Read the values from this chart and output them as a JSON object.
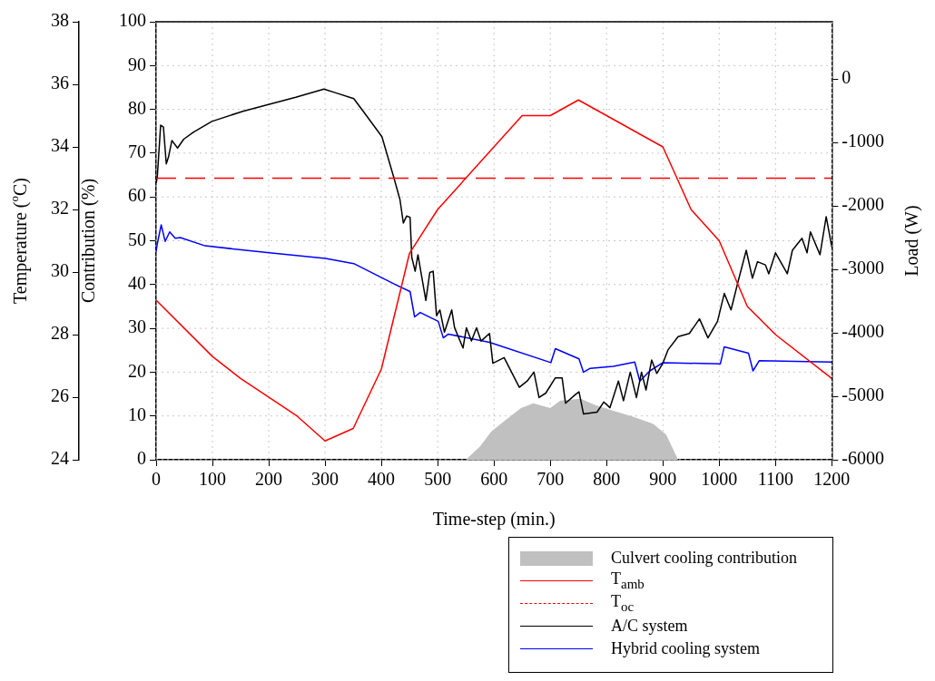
{
  "chart_data": {
    "type": "line",
    "xlabel": "Time-step (min.)",
    "ylabel": "Contribution (%)",
    "y2label": "Load (W)",
    "y3label": "Temperature ($^{o}$C)",
    "xlim": [
      0,
      1200
    ],
    "xticks": [
      0,
      100,
      200,
      300,
      400,
      500,
      600,
      700,
      800,
      900,
      1000,
      1100,
      1200
    ],
    "ylim": [
      0,
      100
    ],
    "yticks": [
      0,
      10,
      20,
      30,
      40,
      50,
      60,
      70,
      80,
      90,
      100
    ],
    "y2lim": [
      -6000,
      900
    ],
    "y2ticks": [
      -6000,
      -5000,
      -4000,
      -3000,
      -2000,
      -1000,
      0
    ],
    "y3lim": [
      24,
      38
    ],
    "y3ticks": [
      24,
      26,
      28,
      30,
      32,
      34,
      36,
      38
    ],
    "grid": true,
    "legend": "bottom right",
    "series": [
      {
        "name": "Culvert cooling contribution",
        "type": "area",
        "color": "#c0c0c0",
        "x": [
          550,
          575,
          595,
          620,
          648,
          670,
          700,
          718,
          754,
          780,
          812,
          848,
          883,
          906,
          927
        ],
        "values": [
          0,
          3,
          6.4,
          9,
          11.8,
          12.9,
          11.8,
          13.5,
          13.9,
          12.5,
          11.2,
          9.8,
          8.2,
          5.7,
          0
        ]
      },
      {
        "name": "T$_{amb}$",
        "color": "#ff0000",
        "axis": "y3",
        "x": [
          0,
          100,
          150,
          250,
          300,
          350,
          400,
          450,
          500,
          650,
          700,
          750,
          900,
          950,
          1000,
          1050,
          1100,
          1200
        ],
        "values": [
          29.1,
          27.3,
          26.6,
          25.4,
          24.6,
          25.0,
          26.9,
          30.6,
          32.0,
          35.0,
          35.0,
          35.5,
          34.0,
          32.0,
          31.0,
          28.9,
          28.0,
          26.6
        ]
      },
      {
        "name": "T$_{oc}$",
        "color": "#ff0000",
        "axis": "y3",
        "line_style": "dashed",
        "x": [
          0,
          1200
        ],
        "values": [
          33,
          33
        ]
      },
      {
        "name": "A/C system",
        "color": "#000000",
        "axis": "y2",
        "x": [
          0,
          2,
          8,
          13,
          18,
          22,
          28,
          38,
          49,
          66,
          99,
          154,
          248,
          298,
          319,
          351,
          372,
          401,
          422,
          433,
          439,
          445,
          451,
          454,
          460,
          465,
          470,
          479,
          486,
          492,
          498,
          504,
          512,
          525,
          530,
          545,
          551,
          560,
          569,
          577,
          592,
          598,
          618,
          645,
          659,
          671,
          680,
          692,
          709,
          721,
          727,
          745,
          751,
          759,
          783,
          795,
          806,
          821,
          830,
          842,
          853,
          862,
          870,
          880,
          889,
          900,
          909,
          927,
          947,
          965,
          980,
          997,
          1009,
          1021,
          1033,
          1048,
          1059,
          1068,
          1082,
          1088,
          1100,
          1121,
          1130,
          1147,
          1156,
          1162,
          1179,
          1190,
          1200
        ],
        "values": [
          -1640,
          -1550,
          -730,
          -760,
          -1340,
          -1230,
          -970,
          -1090,
          -950,
          -840,
          -670,
          -510,
          -290,
          -160,
          -220,
          -310,
          -560,
          -910,
          -1550,
          -1900,
          -2270,
          -2160,
          -2180,
          -2810,
          -3030,
          -2770,
          -3030,
          -3490,
          -3050,
          -3030,
          -3730,
          -3640,
          -3990,
          -3640,
          -3920,
          -4240,
          -3920,
          -4130,
          -3920,
          -4130,
          -4010,
          -4480,
          -4390,
          -4860,
          -4760,
          -4620,
          -5020,
          -4950,
          -4710,
          -4710,
          -5110,
          -4970,
          -4930,
          -5280,
          -5250,
          -5090,
          -5180,
          -4760,
          -5070,
          -4620,
          -5020,
          -4620,
          -4900,
          -4430,
          -4640,
          -4480,
          -4270,
          -4060,
          -4010,
          -3780,
          -4080,
          -3820,
          -3380,
          -3640,
          -3210,
          -2700,
          -3140,
          -2880,
          -2930,
          -3070,
          -2740,
          -3070,
          -2700,
          -2510,
          -2740,
          -2410,
          -2770,
          -2170,
          -2650
        ]
      },
      {
        "name": "Hybrid cooling system",
        "color": "#0000ff",
        "axis": "y2",
        "x": [
          0,
          2,
          9,
          16,
          24,
          34,
          43,
          87,
          201,
          301,
          351,
          425,
          451,
          459,
          469,
          501,
          510,
          519,
          592,
          701,
          709,
          751,
          759,
          771,
          812,
          850,
          859,
          877,
          900,
          1002,
          1009,
          1052,
          1060,
          1071,
          1200
        ],
        "values": [
          -2720,
          -2600,
          -2300,
          -2560,
          -2410,
          -2510,
          -2500,
          -2630,
          -2740,
          -2830,
          -2910,
          -3240,
          -3350,
          -3750,
          -3680,
          -3820,
          -4080,
          -4020,
          -4150,
          -4470,
          -4250,
          -4410,
          -4620,
          -4560,
          -4530,
          -4460,
          -4760,
          -4600,
          -4470,
          -4490,
          -4220,
          -4320,
          -4600,
          -4440,
          -4460
        ]
      }
    ]
  }
}
